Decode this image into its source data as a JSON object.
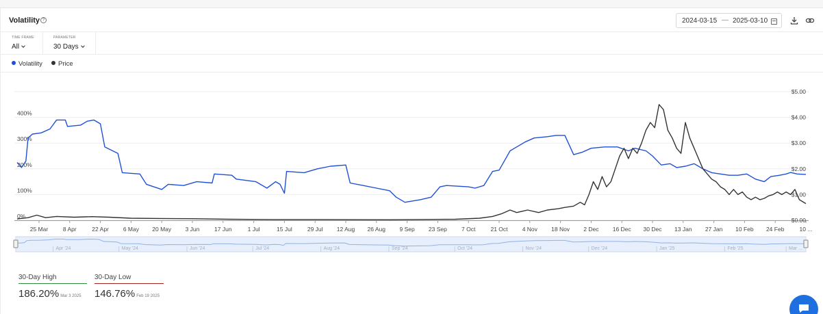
{
  "header": {
    "title": "Volatility",
    "help_icon": "help-circle-icon",
    "date_start": "2024-03-15",
    "date_sep": "—",
    "date_end": "2025-03-10",
    "calendar_icon": "calendar-icon",
    "download_icon": "download-icon",
    "link_icon": "link-icon"
  },
  "filters": {
    "timeframe": {
      "label": "TIME FRAME",
      "value": "All"
    },
    "parameter": {
      "label": "PARAMETER",
      "value": "30 Days"
    }
  },
  "legend": [
    {
      "label": "Volatility",
      "color": "#1f4fd6"
    },
    {
      "label": "Price",
      "color": "#333333"
    }
  ],
  "chart_data": {
    "type": "line",
    "x_start": "2024-03-15",
    "x_end": "2025-03-10",
    "x_ticks": [
      "25 Mar",
      "8 Apr",
      "22 Apr",
      "6 May",
      "20 May",
      "3 Jun",
      "17 Jun",
      "1 Jul",
      "15 Jul",
      "29 Jul",
      "12 Aug",
      "26 Aug",
      "9 Sep",
      "23 Sep",
      "7 Oct",
      "21 Oct",
      "4 Nov",
      "18 Nov",
      "2 Dec",
      "16 Dec",
      "30 Dec",
      "13 Jan",
      "27 Jan",
      "10 Feb",
      "24 Feb",
      "10 ..."
    ],
    "y_left": {
      "ticks": [
        "0%",
        "100%",
        "200%",
        "300%",
        "400%"
      ],
      "range": [
        0,
        500
      ]
    },
    "y_right": {
      "ticks": [
        "$0.00",
        "$1.00",
        "$2.00",
        "$3.00",
        "$4.00",
        "$5.00"
      ],
      "range": [
        0,
        5
      ]
    },
    "series": [
      {
        "name": "Volatility",
        "axis": "left",
        "color": "#1f4fd6",
        "points": [
          [
            "2024-03-15",
            225
          ],
          [
            "2024-03-17",
            205
          ],
          [
            "2024-03-19",
            230
          ],
          [
            "2024-03-20",
            320
          ],
          [
            "2024-03-22",
            335
          ],
          [
            "2024-03-26",
            340
          ],
          [
            "2024-03-30",
            355
          ],
          [
            "2024-04-02",
            390
          ],
          [
            "2024-04-06",
            390
          ],
          [
            "2024-04-07",
            365
          ],
          [
            "2024-04-13",
            370
          ],
          [
            "2024-04-16",
            385
          ],
          [
            "2024-04-19",
            390
          ],
          [
            "2024-04-22",
            375
          ],
          [
            "2024-04-24",
            285
          ],
          [
            "2024-04-30",
            260
          ],
          [
            "2024-05-02",
            185
          ],
          [
            "2024-05-10",
            180
          ],
          [
            "2024-05-13",
            140
          ],
          [
            "2024-05-20",
            120
          ],
          [
            "2024-05-23",
            140
          ],
          [
            "2024-05-30",
            135
          ],
          [
            "2024-06-05",
            150
          ],
          [
            "2024-06-12",
            145
          ],
          [
            "2024-06-13",
            180
          ],
          [
            "2024-06-21",
            175
          ],
          [
            "2024-06-23",
            160
          ],
          [
            "2024-07-02",
            150
          ],
          [
            "2024-07-07",
            125
          ],
          [
            "2024-07-11",
            150
          ],
          [
            "2024-07-13",
            140
          ],
          [
            "2024-07-15",
            105
          ],
          [
            "2024-07-16",
            190
          ],
          [
            "2024-07-24",
            185
          ],
          [
            "2024-07-30",
            200
          ],
          [
            "2024-08-05",
            210
          ],
          [
            "2024-08-12",
            215
          ],
          [
            "2024-08-14",
            145
          ],
          [
            "2024-08-20",
            135
          ],
          [
            "2024-08-26",
            125
          ],
          [
            "2024-09-01",
            115
          ],
          [
            "2024-09-04",
            90
          ],
          [
            "2024-09-08",
            70
          ],
          [
            "2024-09-15",
            80
          ],
          [
            "2024-09-20",
            90
          ],
          [
            "2024-09-24",
            130
          ],
          [
            "2024-09-27",
            135
          ],
          [
            "2024-10-07",
            130
          ],
          [
            "2024-10-10",
            125
          ],
          [
            "2024-10-14",
            135
          ],
          [
            "2024-10-18",
            190
          ],
          [
            "2024-10-21",
            195
          ],
          [
            "2024-10-24",
            240
          ],
          [
            "2024-10-26",
            270
          ],
          [
            "2024-10-29",
            285
          ],
          [
            "2024-11-02",
            305
          ],
          [
            "2024-11-06",
            320
          ],
          [
            "2024-11-12",
            325
          ],
          [
            "2024-11-16",
            330
          ],
          [
            "2024-11-20",
            330
          ],
          [
            "2024-11-24",
            255
          ],
          [
            "2024-11-28",
            265
          ],
          [
            "2024-12-02",
            280
          ],
          [
            "2024-12-08",
            285
          ],
          [
            "2024-12-14",
            285
          ],
          [
            "2024-12-19",
            270
          ],
          [
            "2024-12-22",
            280
          ],
          [
            "2024-12-27",
            270
          ],
          [
            "2024-12-30",
            250
          ],
          [
            "2025-01-03",
            215
          ],
          [
            "2025-01-07",
            220
          ],
          [
            "2025-01-10",
            205
          ],
          [
            "2025-01-14",
            210
          ],
          [
            "2025-01-18",
            220
          ],
          [
            "2025-01-22",
            200
          ],
          [
            "2025-01-26",
            185
          ],
          [
            "2025-01-30",
            180
          ],
          [
            "2025-02-03",
            175
          ],
          [
            "2025-02-07",
            175
          ],
          [
            "2025-02-11",
            180
          ],
          [
            "2025-02-15",
            160
          ],
          [
            "2025-02-19",
            150
          ],
          [
            "2025-02-22",
            170
          ],
          [
            "2025-02-26",
            175
          ],
          [
            "2025-03-01",
            180
          ],
          [
            "2025-03-03",
            186
          ],
          [
            "2025-03-06",
            180
          ],
          [
            "2025-03-10",
            178
          ]
        ]
      },
      {
        "name": "Price",
        "axis": "right",
        "color": "#333333",
        "points": [
          [
            "2024-03-15",
            0.05
          ],
          [
            "2024-03-20",
            0.1
          ],
          [
            "2024-03-24",
            0.2
          ],
          [
            "2024-03-28",
            0.1
          ],
          [
            "2024-04-02",
            0.15
          ],
          [
            "2024-04-10",
            0.12
          ],
          [
            "2024-04-18",
            0.14
          ],
          [
            "2024-04-26",
            0.12
          ],
          [
            "2024-05-06",
            0.08
          ],
          [
            "2024-05-20",
            0.07
          ],
          [
            "2024-06-03",
            0.06
          ],
          [
            "2024-06-20",
            0.04
          ],
          [
            "2024-07-10",
            0.03
          ],
          [
            "2024-08-01",
            0.03
          ],
          [
            "2024-09-01",
            0.02
          ],
          [
            "2024-10-01",
            0.04
          ],
          [
            "2024-10-12",
            0.08
          ],
          [
            "2024-10-18",
            0.15
          ],
          [
            "2024-10-22",
            0.25
          ],
          [
            "2024-10-26",
            0.4
          ],
          [
            "2024-10-29",
            0.3
          ],
          [
            "2024-11-03",
            0.4
          ],
          [
            "2024-11-08",
            0.3
          ],
          [
            "2024-11-12",
            0.4
          ],
          [
            "2024-11-17",
            0.45
          ],
          [
            "2024-11-20",
            0.5
          ],
          [
            "2024-11-24",
            0.55
          ],
          [
            "2024-11-27",
            0.7
          ],
          [
            "2024-11-29",
            0.6
          ],
          [
            "2024-12-01",
            1.0
          ],
          [
            "2024-12-03",
            1.5
          ],
          [
            "2024-12-05",
            1.2
          ],
          [
            "2024-12-07",
            1.7
          ],
          [
            "2024-12-09",
            1.3
          ],
          [
            "2024-12-11",
            1.5
          ],
          [
            "2024-12-13",
            2.0
          ],
          [
            "2024-12-15",
            2.5
          ],
          [
            "2024-12-17",
            2.8
          ],
          [
            "2024-12-19",
            2.4
          ],
          [
            "2024-12-21",
            2.8
          ],
          [
            "2024-12-23",
            2.6
          ],
          [
            "2024-12-25",
            3.0
          ],
          [
            "2024-12-27",
            3.5
          ],
          [
            "2024-12-29",
            3.8
          ],
          [
            "2024-12-31",
            3.6
          ],
          [
            "2025-01-02",
            4.5
          ],
          [
            "2025-01-04",
            4.3
          ],
          [
            "2025-01-06",
            3.5
          ],
          [
            "2025-01-08",
            3.2
          ],
          [
            "2025-01-10",
            2.8
          ],
          [
            "2025-01-12",
            2.6
          ],
          [
            "2025-01-14",
            3.8
          ],
          [
            "2025-01-16",
            3.2
          ],
          [
            "2025-01-18",
            2.8
          ],
          [
            "2025-01-20",
            2.4
          ],
          [
            "2025-01-22",
            2.0
          ],
          [
            "2025-01-24",
            1.8
          ],
          [
            "2025-01-26",
            1.6
          ],
          [
            "2025-01-28",
            1.5
          ],
          [
            "2025-01-30",
            1.3
          ],
          [
            "2025-02-01",
            1.2
          ],
          [
            "2025-02-03",
            1.0
          ],
          [
            "2025-02-05",
            1.2
          ],
          [
            "2025-02-07",
            1.0
          ],
          [
            "2025-02-09",
            1.1
          ],
          [
            "2025-02-11",
            0.9
          ],
          [
            "2025-02-13",
            0.8
          ],
          [
            "2025-02-15",
            0.9
          ],
          [
            "2025-02-17",
            0.8
          ],
          [
            "2025-02-19",
            0.85
          ],
          [
            "2025-02-21",
            0.95
          ],
          [
            "2025-02-23",
            1.0
          ],
          [
            "2025-02-25",
            1.1
          ],
          [
            "2025-02-27",
            1.0
          ],
          [
            "2025-03-01",
            1.1
          ],
          [
            "2025-03-03",
            1.0
          ],
          [
            "2025-03-05",
            1.2
          ],
          [
            "2025-03-07",
            0.8
          ],
          [
            "2025-03-10",
            0.65
          ]
        ]
      }
    ],
    "navigator_ticks": [
      "Apr '24",
      "May '24",
      "Jun '24",
      "Jul '24",
      "Aug '24",
      "Sep '24",
      "Oct '24",
      "Nov '24",
      "Dec '24",
      "Jan '25",
      "Feb '25",
      "Mar ..."
    ],
    "grid": "horizontal",
    "legend_position": "top-left"
  },
  "stats": [
    {
      "label": "30-Day High",
      "value": "186.20%",
      "date": "Mar 3 2025",
      "color": "#2e8b3a"
    },
    {
      "label": "30-Day Low",
      "value": "146.76%",
      "date": "Feb 19 2025",
      "color": "#a32020"
    }
  ],
  "chat_icon": "chat-bubble-icon"
}
